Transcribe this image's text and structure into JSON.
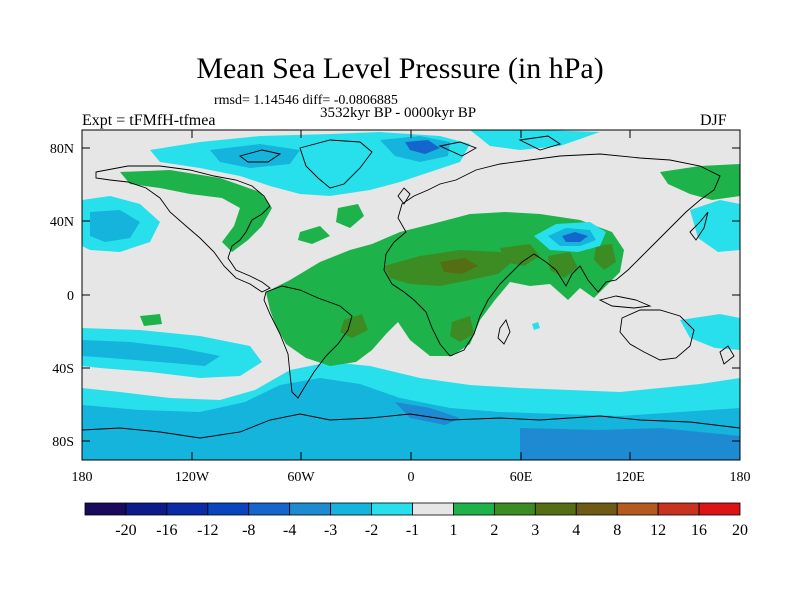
{
  "title": "Mean Sea Level Pressure (in hPa)",
  "stats": "rmsd= 1.14546 diff= -0.0806885",
  "period": "3532kyr BP - 0000kyr BP",
  "experiment": "Expt = tFMfH-tfmea",
  "season": "DJF",
  "lat_ticks": [
    "80N",
    "40N",
    "0",
    "40S",
    "80S"
  ],
  "lon_ticks": [
    "180",
    "120W",
    "60W",
    "0",
    "60E",
    "120E",
    "180"
  ],
  "colorbar": {
    "colors": [
      "#1a0a5e",
      "#0d1a8c",
      "#0a2aa8",
      "#0a45c0",
      "#1466cc",
      "#1e8ad2",
      "#14b4dc",
      "#28e0ec",
      "#e6e6e6",
      "#1eb24b",
      "#3c8c23",
      "#556e14",
      "#6e5a14",
      "#b45a1e",
      "#c8321e",
      "#dc1414"
    ],
    "labels": [
      "-20",
      "-16",
      "-12",
      "-8",
      "-4",
      "-3",
      "-2",
      "-1",
      "1",
      "2",
      "3",
      "4",
      "8",
      "12",
      "16",
      "20"
    ]
  },
  "legend_colors": {
    "neutral": "#e6e6e6",
    "cyan": "#28e0ec",
    "light_blue": "#14b4dc",
    "blue": "#1e8ad2",
    "deep_blue": "#1466cc",
    "green": "#1eb24b",
    "dark_green": "#3c8c23",
    "olive": "#556e14"
  }
}
